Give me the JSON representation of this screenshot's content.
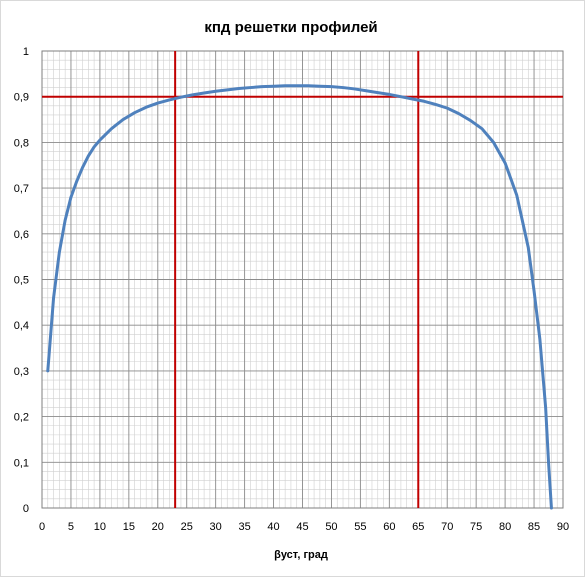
{
  "chart_data": {
    "type": "line",
    "title": "кпд  решетки профилей",
    "xlabel": "βуст, град",
    "ylabel": "",
    "xlim": [
      0,
      90
    ],
    "ylim": [
      0,
      1
    ],
    "x_ticks": [
      "0",
      "5",
      "10",
      "15",
      "20",
      "25",
      "30",
      "35",
      "40",
      "45",
      "50",
      "55",
      "60",
      "65",
      "70",
      "75",
      "80",
      "85",
      "90"
    ],
    "y_ticks": [
      "0",
      "0,1",
      "0,2",
      "0,3",
      "0,4",
      "0,5",
      "0,6",
      "0,7",
      "0,8",
      "0,9",
      "1"
    ],
    "grid": true,
    "minor_grid_step": {
      "x": 1,
      "y": 0.02
    },
    "series": [
      {
        "color": "#4f81bd",
        "x": [
          1,
          2,
          3,
          4,
          5,
          6,
          7,
          8,
          9,
          10,
          12,
          14,
          16,
          18,
          20,
          22,
          24,
          26,
          28,
          30,
          32,
          34,
          36,
          38,
          40,
          42,
          44,
          46,
          48,
          50,
          52,
          54,
          56,
          58,
          60,
          62,
          64,
          66,
          68,
          70,
          72,
          74,
          76,
          78,
          80,
          82,
          84,
          85,
          86,
          87,
          87.5,
          88
        ],
        "y": [
          0.3,
          0.46,
          0.56,
          0.63,
          0.68,
          0.715,
          0.745,
          0.77,
          0.79,
          0.805,
          0.83,
          0.85,
          0.865,
          0.877,
          0.886,
          0.893,
          0.899,
          0.904,
          0.908,
          0.912,
          0.915,
          0.918,
          0.92,
          0.922,
          0.923,
          0.924,
          0.924,
          0.924,
          0.923,
          0.922,
          0.92,
          0.917,
          0.913,
          0.909,
          0.905,
          0.9,
          0.895,
          0.89,
          0.883,
          0.875,
          0.863,
          0.848,
          0.83,
          0.8,
          0.755,
          0.685,
          0.57,
          0.475,
          0.37,
          0.22,
          0.1,
          0.0
        ]
      }
    ],
    "reference_lines": [
      {
        "orientation": "horizontal",
        "value": 0.9,
        "color": "#c00000"
      },
      {
        "orientation": "vertical",
        "value": 23,
        "color": "#c00000"
      },
      {
        "orientation": "vertical",
        "value": 65,
        "color": "#c00000"
      }
    ]
  }
}
